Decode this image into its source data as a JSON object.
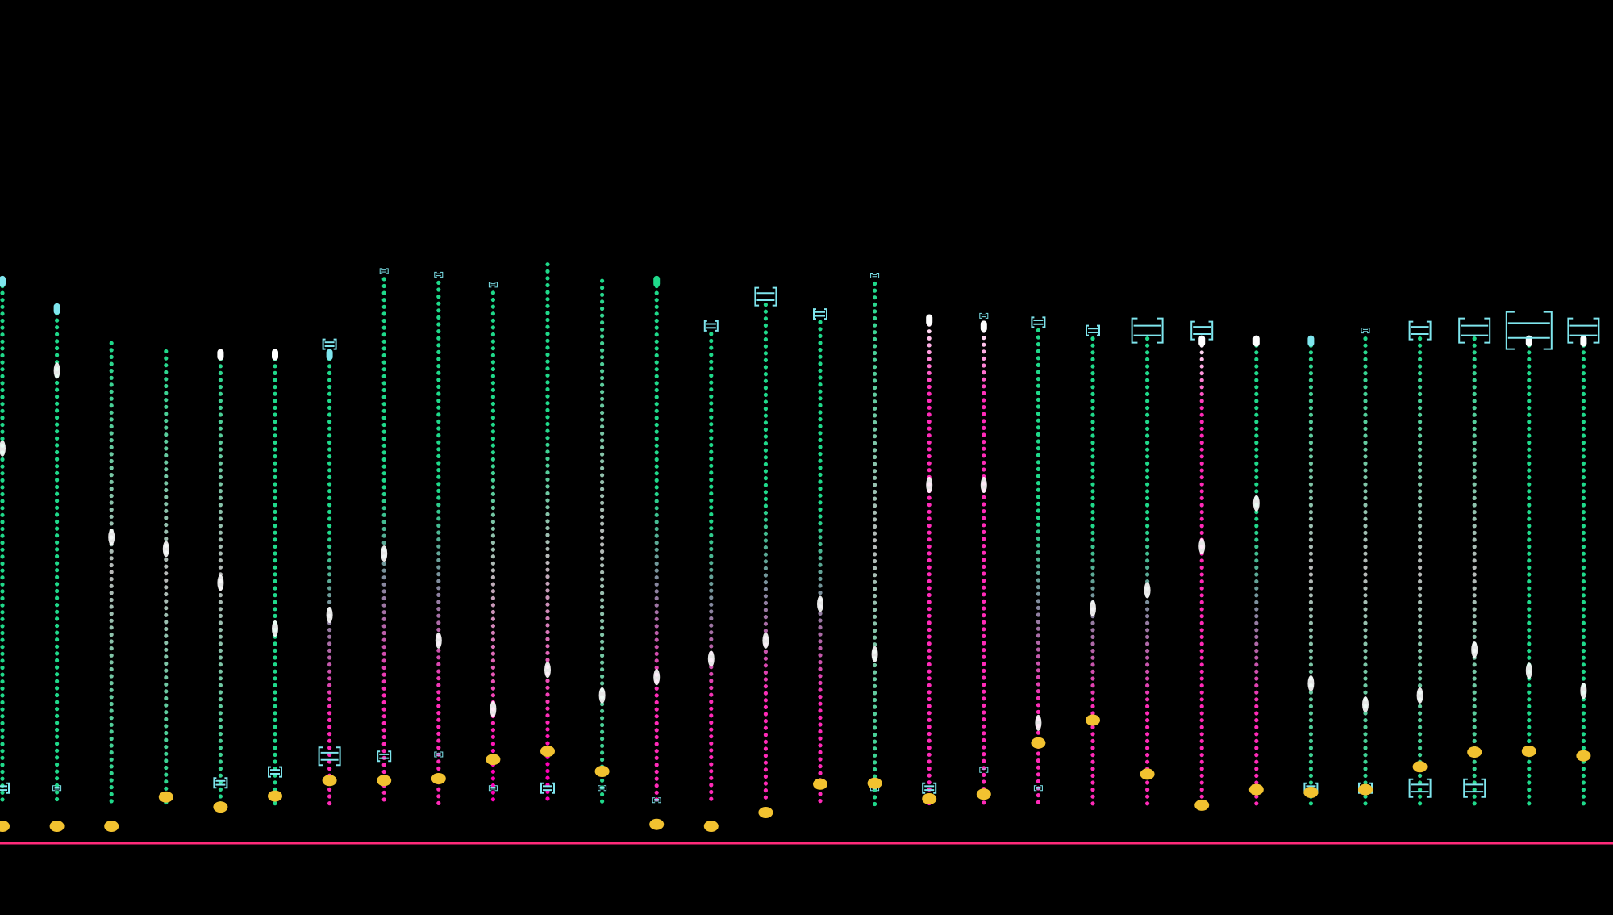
{
  "colors": {
    "background": "#000000",
    "green": "#1fd98a",
    "magenta": "#ff2ab8",
    "white": "#ffffff",
    "grey": "#b9b9b9",
    "cyan": "#7fe6ee",
    "gold": "#f2c230",
    "baseline": "#ff2a7a"
  },
  "icons": {
    "bracket_marker": "bracket-marker-icon",
    "gold_dot": "gold-dot-icon",
    "white_cap": "white-cap-icon"
  },
  "columns": [
    {
      "top": 0.305,
      "bottom": 0.789,
      "dot": 0.903,
      "pal": "g",
      "head": "cyan",
      "mark": 0.49,
      "bt": "none",
      "bb": "small",
      "bl": "none"
    },
    {
      "top": 0.335,
      "bottom": 0.789,
      "dot": 0.903,
      "pal": "g",
      "head": "cyan",
      "mark": 0.405,
      "bt": "none",
      "bb": "tiny",
      "bl": "none"
    },
    {
      "top": 0.375,
      "bottom": 0.789,
      "dot": 0.903,
      "pal": "gw",
      "head": "none",
      "mark": 0.587,
      "bt": "none",
      "bb": "none",
      "bl": "none"
    },
    {
      "top": 0.384,
      "bottom": 0.789,
      "dot": 0.871,
      "pal": "gw",
      "head": "none",
      "mark": 0.6,
      "bt": "none",
      "bb": "none",
      "bl": "none"
    },
    {
      "top": 0.385,
      "bottom": 0.789,
      "dot": 0.882,
      "pal": "gw",
      "head": "white",
      "mark": 0.637,
      "bt": "none",
      "bb": "none",
      "bl": "small"
    },
    {
      "top": 0.385,
      "bottom": 0.789,
      "dot": 0.87,
      "pal": "g",
      "head": "white",
      "mark": 0.687,
      "bt": "none",
      "bb": "none",
      "bl": "small"
    },
    {
      "top": 0.385,
      "bottom": 0.789,
      "dot": 0.853,
      "pal": "gm",
      "head": "cyan",
      "mark": 0.672,
      "bt": "small",
      "bb": "none",
      "bl": "medium"
    },
    {
      "top": 0.305,
      "bottom": 0.789,
      "dot": 0.853,
      "pal": "gm",
      "head": "none",
      "mark": 0.605,
      "bt": "tiny",
      "bb": "none",
      "bl": "small"
    },
    {
      "top": 0.309,
      "bottom": 0.789,
      "dot": 0.851,
      "pal": "gm",
      "head": "none",
      "mark": 0.7,
      "bt": "tiny",
      "bb": "none",
      "bl": "tiny"
    },
    {
      "top": 0.32,
      "bottom": 0.789,
      "dot": 0.83,
      "pal": "gwm",
      "head": "none",
      "mark": 0.775,
      "bt": "tiny",
      "bb": "tiny",
      "bl": "none"
    },
    {
      "top": 0.289,
      "bottom": 0.789,
      "dot": 0.821,
      "pal": "gwm",
      "head": "none",
      "mark": 0.732,
      "bt": "none",
      "bb": "small",
      "bl": "none"
    },
    {
      "top": 0.307,
      "bottom": 0.789,
      "dot": 0.843,
      "pal": "gw",
      "head": "none",
      "mark": 0.76,
      "bt": "none",
      "bb": "tiny",
      "bl": "none"
    },
    {
      "top": 0.305,
      "bottom": 0.789,
      "dot": 0.901,
      "pal": "gm",
      "head": "green",
      "mark": 0.74,
      "bt": "none",
      "bb": "none",
      "bl": "tiny"
    },
    {
      "top": 0.365,
      "bottom": 0.789,
      "dot": 0.903,
      "pal": "gm",
      "head": "none",
      "mark": 0.72,
      "bt": "small",
      "bb": "none",
      "bl": "none"
    },
    {
      "top": 0.333,
      "bottom": 0.789,
      "dot": 0.888,
      "pal": "gm",
      "head": "none",
      "mark": 0.7,
      "bt": "medium",
      "bb": "none",
      "bl": "none"
    },
    {
      "top": 0.352,
      "bottom": 0.789,
      "dot": 0.857,
      "pal": "gm",
      "head": "none",
      "mark": 0.66,
      "bt": "small",
      "bb": "none",
      "bl": "none"
    },
    {
      "top": 0.31,
      "bottom": 0.789,
      "dot": 0.856,
      "pal": "gw",
      "head": "none",
      "mark": 0.715,
      "bt": "tiny",
      "bb": "tiny",
      "bl": "none"
    },
    {
      "top": 0.347,
      "bottom": 0.789,
      "dot": 0.873,
      "pal": "m",
      "head": "white",
      "mark": 0.53,
      "bt": "none",
      "bb": "small",
      "bl": "none"
    },
    {
      "top": 0.354,
      "bottom": 0.789,
      "dot": 0.868,
      "pal": "m",
      "head": "white",
      "mark": 0.53,
      "bt": "tiny",
      "bb": "none",
      "bl": "tiny"
    },
    {
      "top": 0.361,
      "bottom": 0.789,
      "dot": 0.812,
      "pal": "gm",
      "head": "none",
      "mark": 0.79,
      "bt": "small",
      "bb": "tiny",
      "bl": "none"
    },
    {
      "top": 0.37,
      "bottom": 0.789,
      "dot": 0.787,
      "pal": "gm",
      "head": "none",
      "mark": 0.665,
      "bt": "small",
      "bb": "none",
      "bl": "none"
    },
    {
      "top": 0.37,
      "bottom": 0.789,
      "dot": 0.846,
      "pal": "gm",
      "head": "none",
      "mark": 0.645,
      "bt": "large",
      "bb": "none",
      "bl": "none"
    },
    {
      "top": 0.37,
      "bottom": 0.789,
      "dot": 0.88,
      "pal": "m",
      "head": "white",
      "mark": 0.597,
      "bt": "medium",
      "bb": "none",
      "bl": "none"
    },
    {
      "top": 0.37,
      "bottom": 0.789,
      "dot": 0.863,
      "pal": "gm",
      "head": "white",
      "mark": 0.55,
      "bt": "none",
      "bb": "none",
      "bl": "none"
    },
    {
      "top": 0.37,
      "bottom": 0.789,
      "dot": 0.866,
      "pal": "gw",
      "head": "cyan",
      "mark": 0.747,
      "bt": "none",
      "bb": "small",
      "bl": "none"
    },
    {
      "top": 0.37,
      "bottom": 0.789,
      "dot": 0.863,
      "pal": "gw",
      "head": "none",
      "mark": 0.77,
      "bt": "tiny",
      "bb": "small",
      "bl": "none"
    },
    {
      "top": 0.37,
      "bottom": 0.789,
      "dot": 0.838,
      "pal": "gw",
      "head": "none",
      "mark": 0.76,
      "bt": "medium",
      "bb": "medium",
      "bl": "none"
    },
    {
      "top": 0.37,
      "bottom": 0.789,
      "dot": 0.822,
      "pal": "gw",
      "head": "none",
      "mark": 0.71,
      "bt": "large",
      "bb": "medium",
      "bl": "none"
    },
    {
      "top": 0.37,
      "bottom": 0.789,
      "dot": 0.821,
      "pal": "g",
      "head": "white",
      "mark": 0.733,
      "bt": "xl",
      "bb": "none",
      "bl": "none"
    },
    {
      "top": 0.37,
      "bottom": 0.789,
      "dot": 0.826,
      "pal": "g",
      "head": "white",
      "mark": 0.755,
      "bt": "large",
      "bb": "none",
      "bl": "none"
    }
  ]
}
